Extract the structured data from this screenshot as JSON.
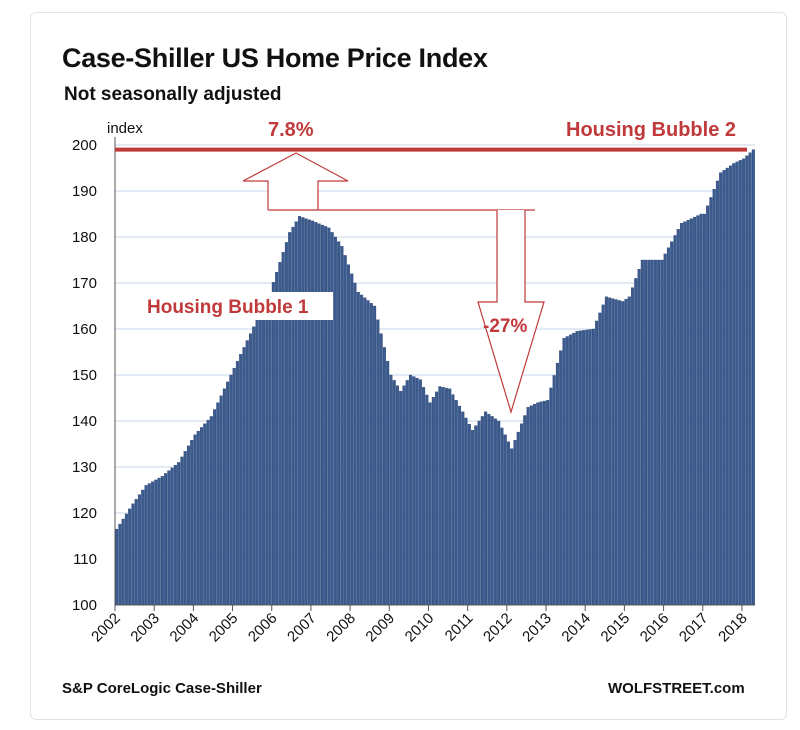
{
  "title": "Case-Shiller US Home Price Index",
  "subtitle": "Not seasonally adjusted",
  "source": "S&P CoreLogic Case-Shiller",
  "credit": "WOLFSTREET.com",
  "colors": {
    "bar": "#3b5a8e",
    "bar_edge": "#243f6e",
    "annotation": "#c0393b",
    "grid": "#c8d6ea"
  },
  "chart_data": {
    "type": "bar",
    "title": "Case-Shiller US Home Price Index",
    "subtitle": "Not seasonally adjusted",
    "ylabel": "index",
    "ylim": [
      100,
      200
    ],
    "yticks": [
      "100",
      "110",
      "120",
      "130",
      "140",
      "150",
      "160",
      "170",
      "180",
      "190",
      "200"
    ],
    "xticks": [
      "2002",
      "2003",
      "2004",
      "2005",
      "2006",
      "2007",
      "2008",
      "2009",
      "2010",
      "2011",
      "2012",
      "2013",
      "2014",
      "2015",
      "2016",
      "2017",
      "2018"
    ],
    "grid": true,
    "frequency": "monthly",
    "start": "2002-01",
    "end": "2018-04",
    "anchors": [
      [
        "2002-01",
        116.5
      ],
      [
        "2002-06",
        122
      ],
      [
        "2002-10",
        126
      ],
      [
        "2003-03",
        128
      ],
      [
        "2003-08",
        131
      ],
      [
        "2004-01",
        137
      ],
      [
        "2004-06",
        141
      ],
      [
        "2004-12",
        150
      ],
      [
        "2005-06",
        159
      ],
      [
        "2005-12",
        168
      ],
      [
        "2006-06",
        181
      ],
      [
        "2006-09",
        184.5
      ],
      [
        "2007-01",
        183.5
      ],
      [
        "2007-06",
        182
      ],
      [
        "2007-10",
        178
      ],
      [
        "2008-03",
        168
      ],
      [
        "2008-08",
        165
      ],
      [
        "2009-01",
        150
      ],
      [
        "2009-04",
        146.5
      ],
      [
        "2009-07",
        150
      ],
      [
        "2009-10",
        149
      ],
      [
        "2010-01",
        144
      ],
      [
        "2010-04",
        147.5
      ],
      [
        "2010-07",
        147
      ],
      [
        "2010-11",
        142
      ],
      [
        "2011-02",
        138
      ],
      [
        "2011-06",
        142
      ],
      [
        "2011-10",
        140
      ],
      [
        "2012-02",
        134
      ],
      [
        "2012-07",
        143
      ],
      [
        "2012-10",
        144
      ],
      [
        "2013-01",
        144.5
      ],
      [
        "2013-06",
        158
      ],
      [
        "2013-10",
        159.5
      ],
      [
        "2014-03",
        160
      ],
      [
        "2014-07",
        167
      ],
      [
        "2014-12",
        166
      ],
      [
        "2015-02",
        167
      ],
      [
        "2015-06",
        175
      ],
      [
        "2015-12",
        175
      ],
      [
        "2016-06",
        183
      ],
      [
        "2016-12",
        185
      ],
      [
        "2017-01",
        185
      ],
      [
        "2017-06",
        194
      ],
      [
        "2017-10",
        196
      ],
      [
        "2018-01",
        197
      ],
      [
        "2018-04",
        199
      ]
    ],
    "annotations": [
      {
        "text": "7.8%"
      },
      {
        "text": "Housing Bubble 2"
      },
      {
        "text": "Housing Bubble 1"
      },
      {
        "text": "-27%"
      }
    ],
    "reference_line": {
      "y": 199
    }
  }
}
